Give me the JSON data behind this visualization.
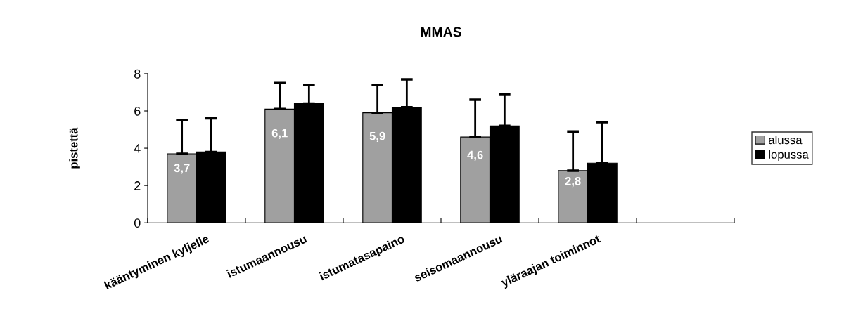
{
  "chart_data": {
    "type": "bar",
    "title": "MMAS",
    "ylabel": "pistettä",
    "categories": [
      "kääntyminen kyljelle",
      "istumaannousu",
      "istumatasapaino",
      "seisomaannousu",
      "yläraajan toiminnot",
      null
    ],
    "series": [
      {
        "name": "alussa",
        "color": "#a0a0a0",
        "values": [
          3.7,
          6.1,
          5.9,
          4.6,
          2.8,
          null
        ],
        "errors": [
          [
            3.7,
            5.5
          ],
          [
            6.1,
            7.5
          ],
          [
            5.9,
            7.4
          ],
          [
            4.6,
            6.6
          ],
          [
            2.8,
            4.9
          ],
          null
        ],
        "value_labels": [
          "3,7",
          "6,1",
          "5,9",
          "4,6",
          "2,8",
          null
        ]
      },
      {
        "name": "lopussa",
        "color": "#000000",
        "values": [
          3.8,
          6.4,
          6.2,
          5.2,
          3.2,
          null
        ],
        "errors": [
          [
            3.8,
            5.6
          ],
          [
            6.4,
            7.4
          ],
          [
            6.2,
            7.7
          ],
          [
            5.2,
            6.9
          ],
          [
            3.2,
            5.4
          ],
          null
        ]
      }
    ],
    "ylim": [
      0,
      8
    ],
    "yticks": [
      0,
      2,
      4,
      6,
      8
    ],
    "grid": false,
    "legend": "right"
  }
}
